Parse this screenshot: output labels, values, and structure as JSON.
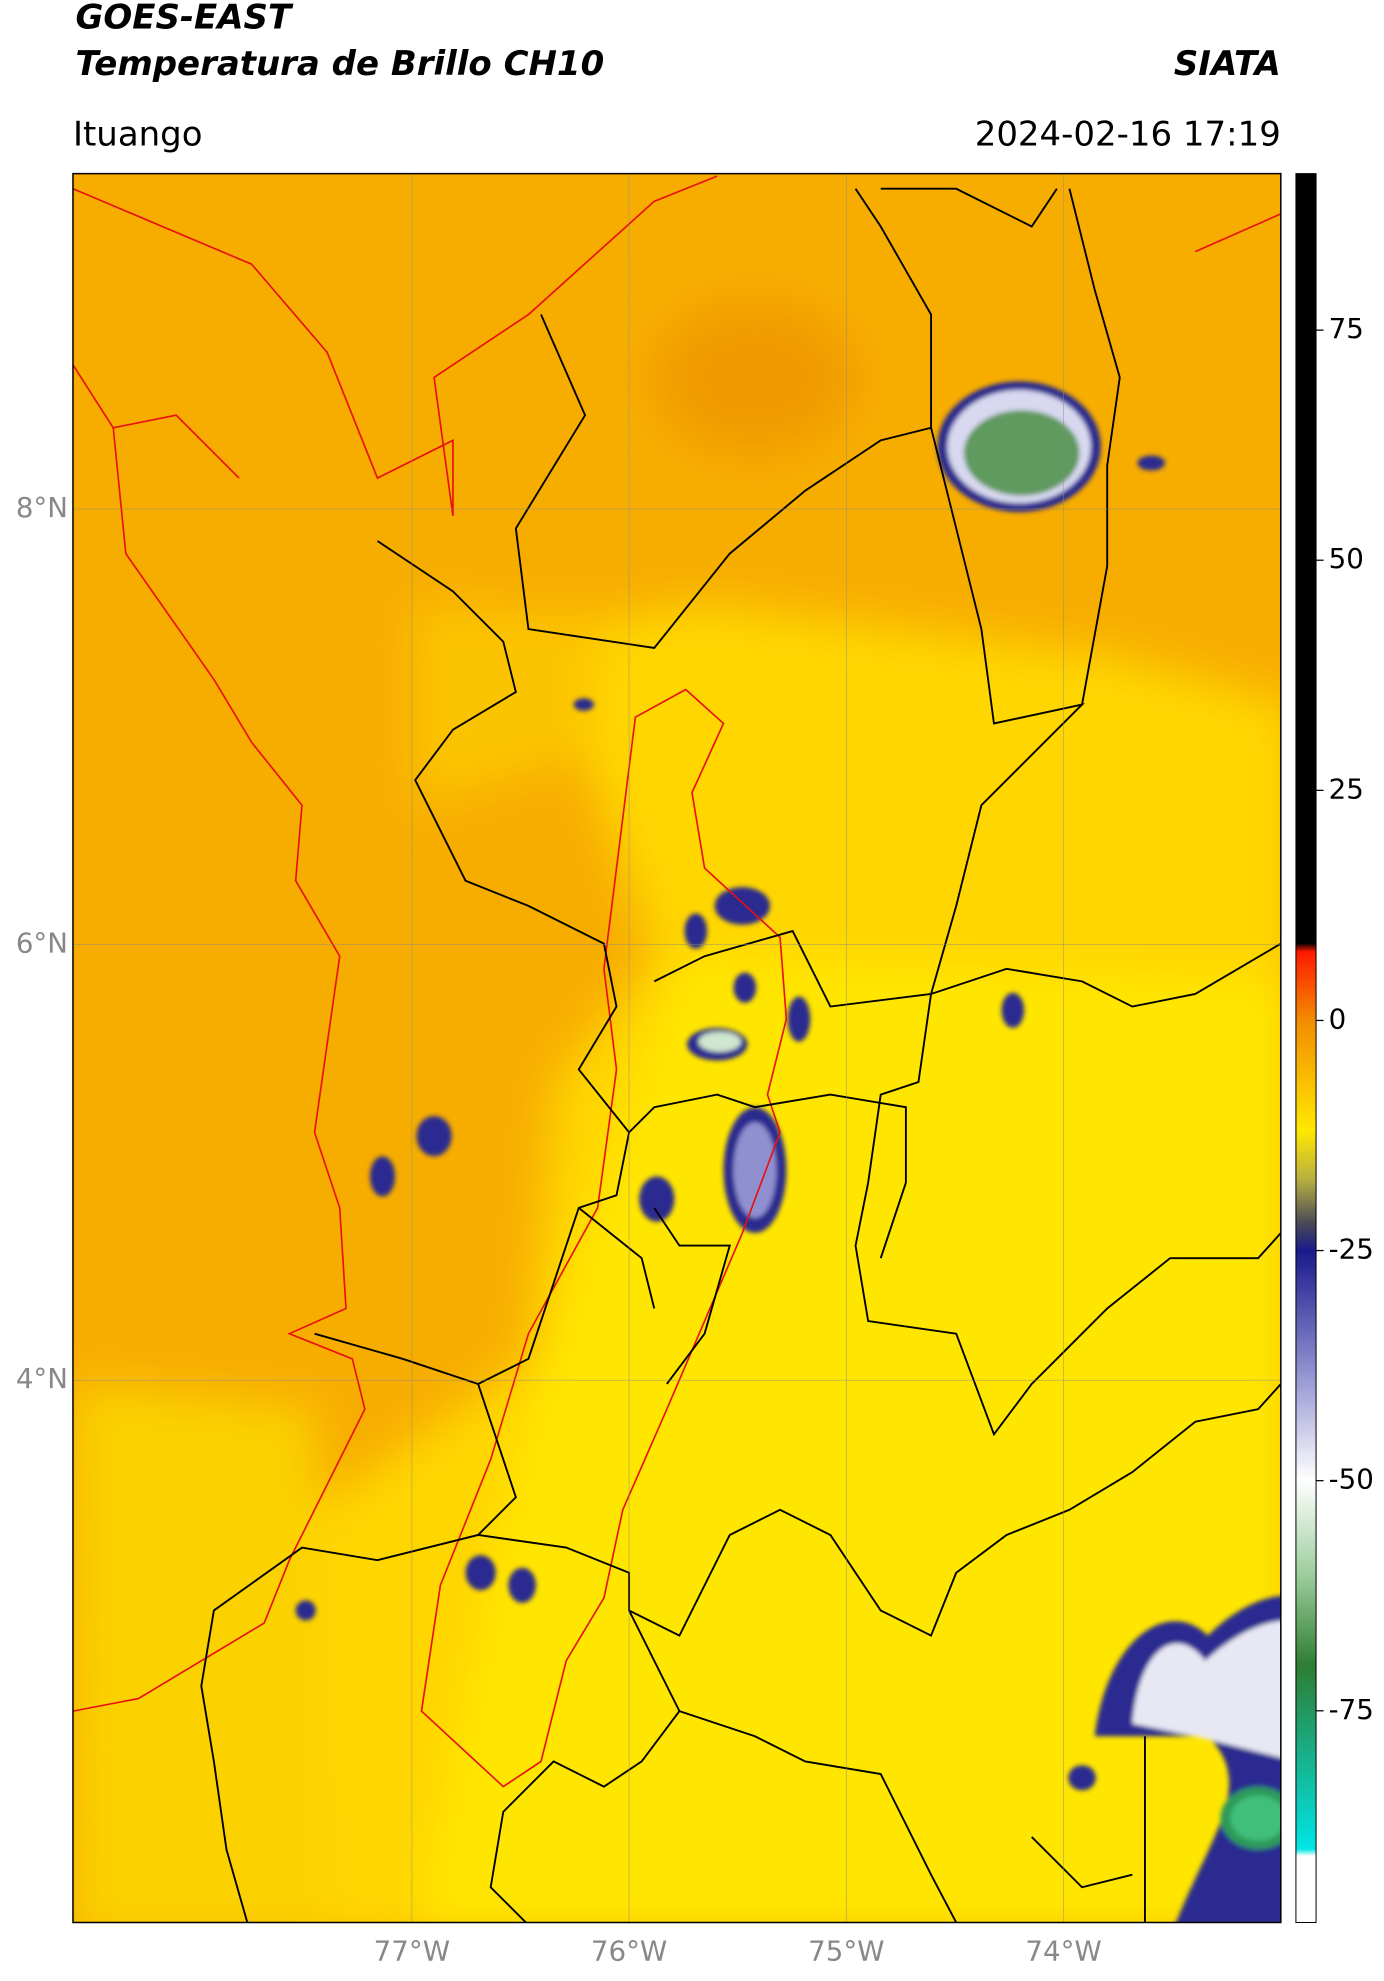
{
  "chart_data": {
    "type": "map",
    "title": "GOES-EAST",
    "subtitle": "Temperatura de Brillo CH10",
    "source": "SIATA",
    "location": "Ituango",
    "datetime": "2024-02-16 17:19",
    "xlim": [
      -78.56,
      -73.0
    ],
    "ylim": [
      1.51,
      9.54
    ],
    "xticks": [
      {
        "value": -77,
        "label": "77°W"
      },
      {
        "value": -76,
        "label": "76°W"
      },
      {
        "value": -75,
        "label": "75°W"
      },
      {
        "value": -74,
        "label": "74°W"
      }
    ],
    "yticks": [
      {
        "value": 8,
        "label": "8°N"
      },
      {
        "value": 6,
        "label": "6°N"
      },
      {
        "value": 4,
        "label": "4°N"
      }
    ],
    "grid": true,
    "colorbar": {
      "lim": [
        -98,
        92
      ],
      "ticks": [
        75,
        50,
        25,
        0,
        -25,
        -50,
        -75
      ]
    }
  }
}
